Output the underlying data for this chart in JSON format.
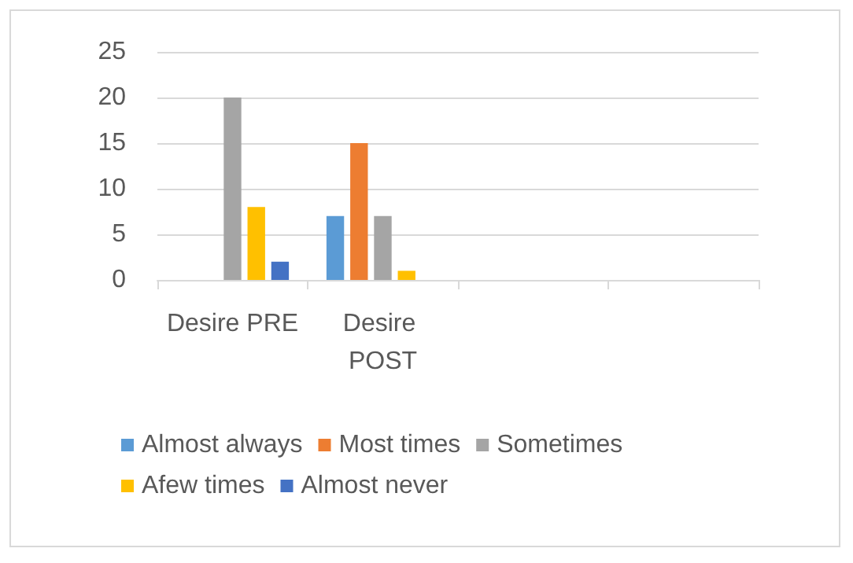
{
  "chart_data": {
    "type": "bar",
    "categories": [
      "Desire PRE",
      "Desire POST",
      null,
      null
    ],
    "series": [
      {
        "name": "Almost always",
        "color": "#5b9bd5",
        "values": [
          0,
          7,
          null,
          null
        ]
      },
      {
        "name": "Most times",
        "color": "#ed7d31",
        "values": [
          0,
          15,
          null,
          null
        ]
      },
      {
        "name": "Sometimes",
        "color": "#a5a5a5",
        "values": [
          20,
          7,
          null,
          null
        ]
      },
      {
        "name": "Afew times",
        "color": "#ffc000",
        "values": [
          8,
          1,
          null,
          null
        ]
      },
      {
        "name": "Almost never",
        "color": "#4472c4",
        "values": [
          2,
          0,
          null,
          null
        ]
      }
    ],
    "ylim": [
      0,
      25
    ],
    "yticks": [
      0,
      5,
      10,
      15,
      20,
      25
    ],
    "grid": "y",
    "legend": "bottom"
  }
}
